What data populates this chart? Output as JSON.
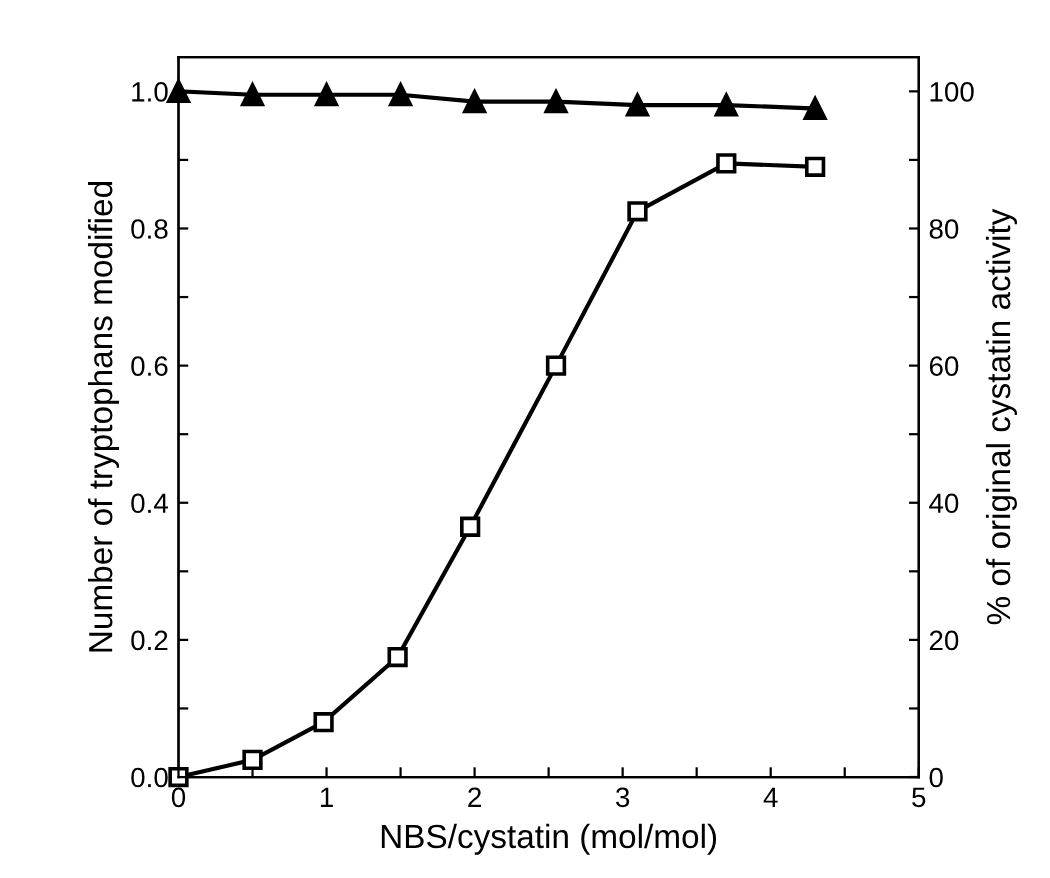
{
  "chart_data": {
    "type": "line",
    "xlabel": "NBS/cystatin (mol/mol)",
    "ylabel": "Number of tryptophans modified",
    "y2label": "% of original cystatin activity",
    "xlim": [
      0,
      5
    ],
    "xticks": [
      0,
      {
        "value": 0.5,
        "label": null
      },
      1,
      {
        "value": 1.5,
        "label": null
      },
      2,
      {
        "value": 2.5,
        "label": null
      },
      3,
      {
        "value": 3.5,
        "label": null
      },
      4,
      {
        "value": 4.5,
        "label": null
      },
      5
    ],
    "ylim": [
      0,
      1.05
    ],
    "yticks": [
      "0.0",
      {
        "value": 0.1,
        "label": null
      },
      0.2,
      {
        "value": 0.3,
        "label": null
      },
      0.4,
      {
        "value": 0.5,
        "label": null
      },
      0.6,
      {
        "value": 0.7,
        "label": null
      },
      0.8,
      {
        "value": 0.9,
        "label": null
      },
      "1.0"
    ],
    "y2lim": [
      0,
      105
    ],
    "y2ticks": [
      0,
      {
        "value": 10,
        "label": null
      },
      20,
      {
        "value": 30,
        "label": null
      },
      40,
      {
        "value": 50,
        "label": null
      },
      60,
      {
        "value": 70,
        "label": null
      },
      80,
      {
        "value": 90,
        "label": null
      },
      100
    ],
    "grid": false,
    "legend": false,
    "series": [
      {
        "color": "#000000",
        "marker": "square",
        "x": [
          0,
          0.5,
          0.98,
          1.48,
          1.97,
          2.55,
          3.1,
          3.7,
          4.3
        ],
        "values": [
          0.0,
          0.025,
          0.08,
          0.175,
          0.365,
          0.6,
          0.825,
          0.895,
          0.89
        ]
      },
      {
        "color": "#000000",
        "marker": "triangle",
        "axis": "y2",
        "x": [
          0,
          0.5,
          1.0,
          1.5,
          2.0,
          2.55,
          3.1,
          3.7,
          4.3
        ],
        "values": [
          100,
          99.5,
          99.5,
          99.5,
          98.5,
          98.5,
          98,
          98,
          97.5
        ]
      }
    ]
  }
}
